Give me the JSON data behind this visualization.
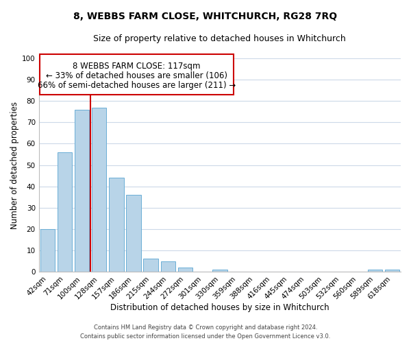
{
  "title": "8, WEBBS FARM CLOSE, WHITCHURCH, RG28 7RQ",
  "subtitle": "Size of property relative to detached houses in Whitchurch",
  "xlabel": "Distribution of detached houses by size in Whitchurch",
  "ylabel": "Number of detached properties",
  "bar_labels": [
    "42sqm",
    "71sqm",
    "100sqm",
    "128sqm",
    "157sqm",
    "186sqm",
    "215sqm",
    "244sqm",
    "272sqm",
    "301sqm",
    "330sqm",
    "359sqm",
    "388sqm",
    "416sqm",
    "445sqm",
    "474sqm",
    "503sqm",
    "532sqm",
    "560sqm",
    "589sqm",
    "618sqm"
  ],
  "bar_values": [
    20,
    56,
    76,
    77,
    44,
    36,
    6,
    5,
    2,
    0,
    1,
    0,
    0,
    0,
    0,
    0,
    0,
    0,
    0,
    1,
    1
  ],
  "bar_color": "#b8d4e8",
  "bar_edge_color": "#6aaed6",
  "vline_x": 2.5,
  "vline_color": "#cc0000",
  "annotation_line1": "8 WEBBS FARM CLOSE: 117sqm",
  "annotation_line2": "← 33% of detached houses are smaller (106)",
  "annotation_line3": "66% of semi-detached houses are larger (211) →",
  "ylim": [
    0,
    100
  ],
  "yticks": [
    0,
    10,
    20,
    30,
    40,
    50,
    60,
    70,
    80,
    90,
    100
  ],
  "footer_line1": "Contains HM Land Registry data © Crown copyright and database right 2024.",
  "footer_line2": "Contains public sector information licensed under the Open Government Licence v3.0.",
  "bg_color": "#ffffff",
  "grid_color": "#ccd9e8",
  "title_fontsize": 10,
  "subtitle_fontsize": 9,
  "xlabel_fontsize": 8.5,
  "ylabel_fontsize": 8.5,
  "tick_fontsize": 7.5,
  "annot_fontsize": 8.5,
  "footer_fontsize": 6
}
